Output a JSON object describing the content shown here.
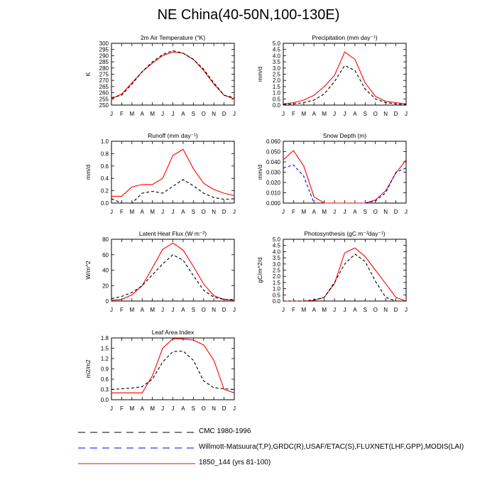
{
  "title": "NE China(40-50N,100-130E)",
  "months": [
    "J",
    "F",
    "M",
    "A",
    "M",
    "J",
    "J",
    "A",
    "S",
    "O",
    "N",
    "D",
    "J"
  ],
  "legend": [
    {
      "label": "CMC 1980-1996",
      "color": "#000000",
      "dash": "dashed"
    },
    {
      "label": "Willmott-Matsuura(T,P),GRDC(R),USAF/ETAC(S),FLUXNET(LHF,GPP),MODIS(LAI)",
      "color": "#0000ff",
      "dash": "dashed"
    },
    {
      "label": "1850_144 (yrs 81-100)",
      "color": "#ff0000",
      "dash": "solid"
    }
  ],
  "chart_data": [
    {
      "type": "line",
      "title": "2m Air Temperature (°K)",
      "ylabel": "K",
      "ylim": [
        250,
        300
      ],
      "yticks": [
        250,
        255,
        260,
        265,
        270,
        275,
        280,
        285,
        290,
        295,
        300
      ],
      "ytick_labels": [
        "250",
        "255",
        "260",
        "265",
        "270",
        "275",
        "280",
        "285",
        "290",
        "295",
        "300"
      ],
      "categories": [
        "J",
        "F",
        "M",
        "A",
        "M",
        "J",
        "J",
        "A",
        "S",
        "O",
        "N",
        "D",
        "J"
      ],
      "series": [
        {
          "name": "1850_144 (yrs 81-100)",
          "color": "#ff0000",
          "dash": "solid",
          "values": [
            255,
            259,
            268,
            277,
            284,
            290,
            293,
            292,
            287,
            278,
            267,
            258,
            255
          ]
        },
        {
          "name": "CMC 1980-1996",
          "color": "#000000",
          "dash": "dashed",
          "values": [
            256,
            258,
            267,
            277,
            285,
            291,
            294,
            292,
            287,
            279,
            268,
            258,
            256
          ]
        }
      ]
    },
    {
      "type": "line",
      "title": "Precipitation (mm day⁻¹)",
      "ylabel": "mm/d",
      "ylim": [
        0,
        5
      ],
      "yticks": [
        0,
        0.5,
        1,
        1.5,
        2,
        2.5,
        3,
        3.5,
        4,
        4.5,
        5
      ],
      "ytick_labels": [
        "0.0",
        "0.5",
        "1.0",
        "1.5",
        "2.0",
        "2.5",
        "3.0",
        "3.5",
        "4.0",
        "4.5",
        "5.0"
      ],
      "categories": [
        "J",
        "F",
        "M",
        "A",
        "M",
        "J",
        "J",
        "A",
        "S",
        "O",
        "N",
        "D",
        "J"
      ],
      "series": [
        {
          "name": "1850_144 (yrs 81-100)",
          "color": "#ff0000",
          "dash": "solid",
          "values": [
            0.1,
            0.2,
            0.4,
            0.8,
            1.5,
            2.4,
            4.3,
            3.7,
            1.8,
            0.7,
            0.3,
            0.2,
            0.1
          ]
        },
        {
          "name": "CMC 1980-1996",
          "color": "#000000",
          "dash": "dashed",
          "values": [
            0.05,
            0.1,
            0.2,
            0.4,
            0.9,
            1.9,
            3.2,
            2.8,
            1.3,
            0.5,
            0.2,
            0.1,
            0.05
          ]
        }
      ]
    },
    {
      "type": "line",
      "title": "Runoff (mm day⁻¹)",
      "ylabel": "mm/d",
      "ylim": [
        0,
        1
      ],
      "yticks": [
        0,
        0.2,
        0.4,
        0.6,
        0.8,
        1
      ],
      "ytick_labels": [
        "0.0",
        "0.2",
        "0.4",
        "0.6",
        "0.8",
        "1.0"
      ],
      "categories": [
        "J",
        "F",
        "M",
        "A",
        "M",
        "J",
        "J",
        "A",
        "S",
        "O",
        "N",
        "D",
        "J"
      ],
      "series": [
        {
          "name": "1850_144 (yrs 81-100)",
          "color": "#ff0000",
          "dash": "solid",
          "values": [
            0.11,
            0.11,
            0.26,
            0.3,
            0.3,
            0.4,
            0.77,
            0.87,
            0.56,
            0.32,
            0.22,
            0.16,
            0.12
          ]
        },
        {
          "name": "CMC 1980-1996",
          "color": "#000000",
          "dash": "dashed",
          "values": [
            0.07,
            0.0,
            0.0,
            0.16,
            0.19,
            0.16,
            0.27,
            0.38,
            0.28,
            0.16,
            0.09,
            0.06,
            0.07
          ]
        }
      ]
    },
    {
      "type": "line",
      "title": "Snow Depth (m)",
      "ylabel": "mm/d",
      "ylim": [
        0,
        0.06
      ],
      "yticks": [
        0,
        0.01,
        0.02,
        0.03,
        0.04,
        0.05,
        0.06
      ],
      "ytick_labels": [
        "0.000",
        "0.010",
        "0.020",
        "0.030",
        "0.040",
        "0.050",
        "0.060"
      ],
      "categories": [
        "J",
        "F",
        "M",
        "A",
        "M",
        "J",
        "J",
        "A",
        "S",
        "O",
        "N",
        "D",
        "J"
      ],
      "series": [
        {
          "name": "1850_144 (yrs 81-100)",
          "color": "#ff0000",
          "dash": "solid",
          "values": [
            0.042,
            0.051,
            0.036,
            0.006,
            0.0,
            0.0,
            0.0,
            0.0,
            0.0,
            0.003,
            0.012,
            0.029,
            0.042
          ]
        },
        {
          "name": "Willmott-Matsuura(T,P),GRDC(R),USAF/ETAC(S),FLUXNET(LHF,GPP),MODIS(LAI)",
          "color": "#0000ff",
          "dash": "dashed",
          "values": [
            0.034,
            0.037,
            0.026,
            0.0,
            null,
            null,
            null,
            null,
            0.0,
            0.002,
            0.01,
            0.03,
            0.034
          ]
        }
      ]
    },
    {
      "type": "line",
      "title": "Latent Heat Flux (W m⁻²)",
      "ylabel": "W/m^2",
      "ylim": [
        0,
        80
      ],
      "yticks": [
        0,
        20,
        40,
        60,
        80
      ],
      "ytick_labels": [
        "0",
        "20",
        "40",
        "60",
        "80"
      ],
      "categories": [
        "J",
        "F",
        "M",
        "A",
        "M",
        "J",
        "J",
        "A",
        "S",
        "O",
        "N",
        "D",
        "J"
      ],
      "series": [
        {
          "name": "1850_144 (yrs 81-100)",
          "color": "#ff0000",
          "dash": "solid",
          "values": [
            1,
            2,
            8,
            20,
            43,
            67,
            75,
            66,
            45,
            22,
            7,
            2,
            1
          ]
        },
        {
          "name": "CMC 1980-1996",
          "color": "#000000",
          "dash": "dashed",
          "values": [
            3,
            6,
            11,
            20,
            34,
            48,
            60,
            53,
            33,
            14,
            5,
            2,
            2
          ]
        }
      ]
    },
    {
      "type": "line",
      "title": "Photosynthesis (gC m⁻²day⁻¹)",
      "ylabel": "gC/m^2/d",
      "ylim": [
        0,
        5
      ],
      "yticks": [
        0,
        0.5,
        1,
        1.5,
        2,
        2.5,
        3,
        3.5,
        4,
        4.5,
        5
      ],
      "ytick_labels": [
        "0.0",
        "0.5",
        "1.0",
        "1.5",
        "2.0",
        "2.5",
        "3.0",
        "3.5",
        "4.0",
        "4.5",
        "5.0"
      ],
      "categories": [
        "J",
        "F",
        "M",
        "A",
        "M",
        "J",
        "J",
        "A",
        "S",
        "O",
        "N",
        "D",
        "J"
      ],
      "series": [
        {
          "name": "1850_144 (yrs 81-100)",
          "color": "#ff0000",
          "dash": "solid",
          "values": [
            0.0,
            0.0,
            0.0,
            0.05,
            0.3,
            1.4,
            3.9,
            4.3,
            3.6,
            2.5,
            1.4,
            0.3,
            0.0
          ]
        },
        {
          "name": "CMC 1980-1996",
          "color": "#000000",
          "dash": "dashed",
          "values": [
            0.0,
            0.0,
            0.0,
            0.1,
            0.3,
            1.5,
            3.0,
            3.8,
            3.2,
            1.6,
            0.3,
            0.0,
            0.0
          ]
        }
      ]
    },
    {
      "type": "line",
      "title": "Leaf Area Index",
      "ylabel": "m2/m2",
      "ylim": [
        0,
        1.8
      ],
      "yticks": [
        0,
        0.3,
        0.6,
        0.9,
        1.2,
        1.5,
        1.8
      ],
      "ytick_labels": [
        "0.0",
        "0.3",
        "0.6",
        "0.9",
        "1.2",
        "1.5",
        "1.8"
      ],
      "categories": [
        "J",
        "F",
        "M",
        "A",
        "M",
        "J",
        "J",
        "A",
        "S",
        "O",
        "N",
        "D",
        "J"
      ],
      "series": [
        {
          "name": "1850_144 (yrs 81-100)",
          "color": "#ff0000",
          "dash": "solid",
          "values": [
            0.2,
            0.2,
            0.2,
            0.2,
            0.7,
            1.5,
            1.78,
            1.77,
            1.74,
            1.6,
            1.15,
            0.3,
            0.2
          ]
        },
        {
          "name": "CMC 1980-1996",
          "color": "#000000",
          "dash": "dashed",
          "values": [
            0.3,
            0.32,
            0.34,
            0.38,
            0.6,
            1.1,
            1.4,
            1.42,
            1.15,
            0.55,
            0.35,
            0.32,
            0.3
          ]
        }
      ]
    }
  ]
}
